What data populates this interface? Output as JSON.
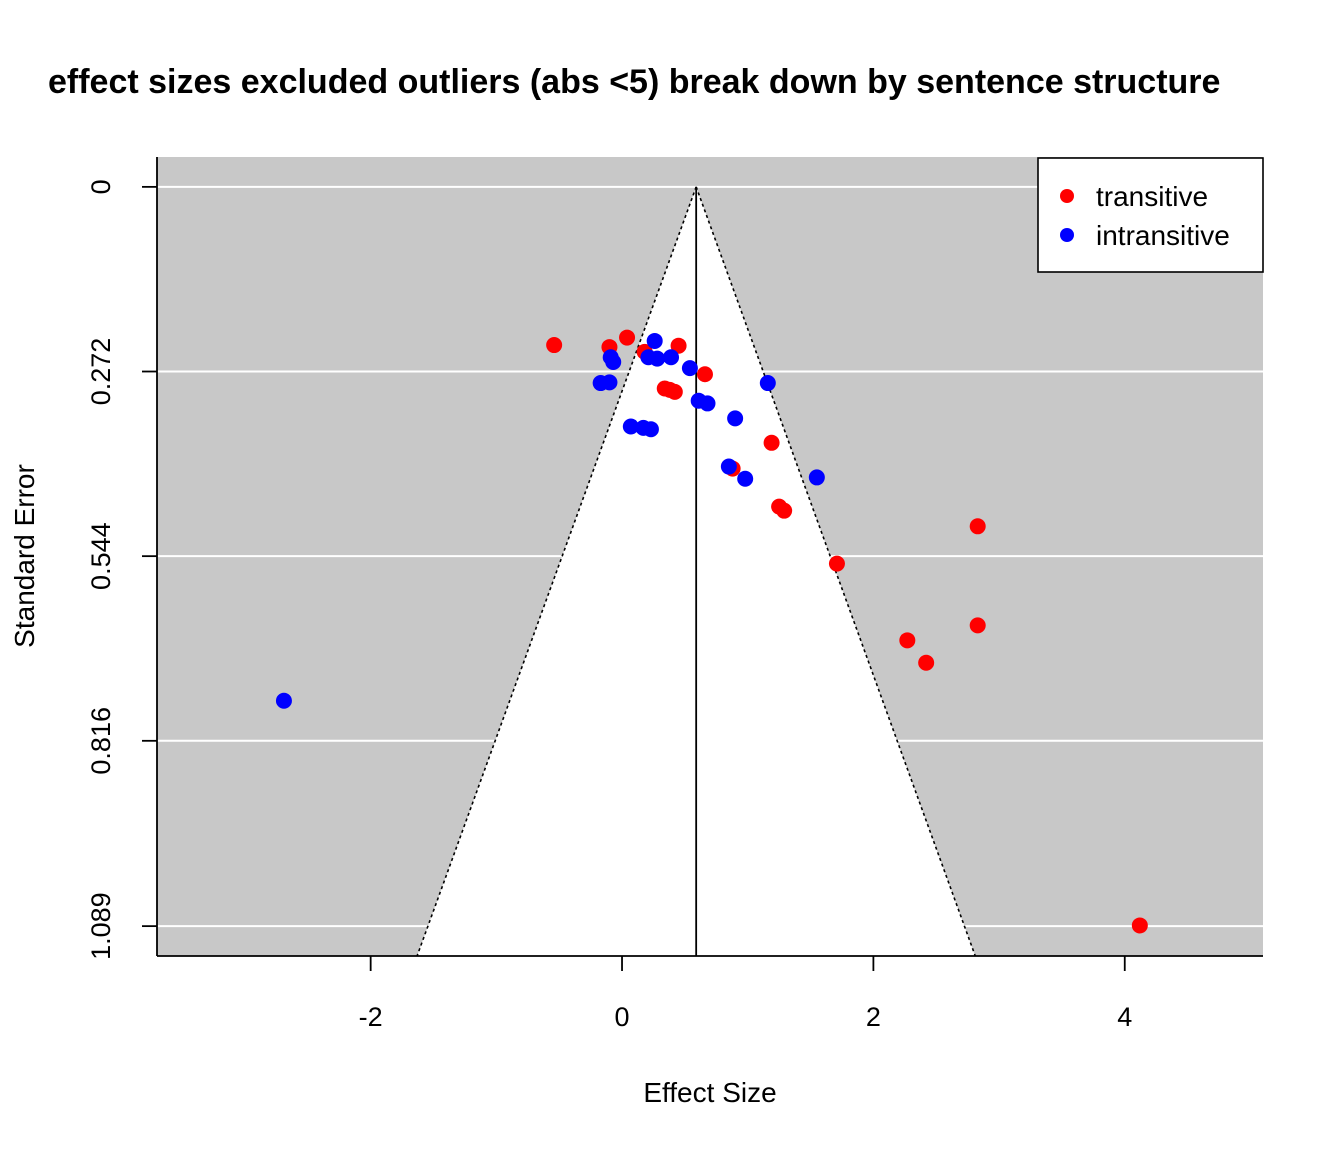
{
  "chart_data": {
    "type": "scatter",
    "title": "effect sizes excluded outliers (abs <5) break down by sentence structure",
    "xlabel": "Effect Size",
    "ylabel": "Standard Error",
    "xlim": [
      -3.7,
      5.1
    ],
    "ylim": [
      1.133,
      -0.044
    ],
    "x_ticks": [
      -2,
      0,
      2,
      4
    ],
    "x_tick_labels": [
      "-2",
      "0",
      "2",
      "4"
    ],
    "y_ticks": [
      0,
      0.272,
      0.544,
      0.816,
      1.089
    ],
    "y_tick_labels": [
      "0",
      "0.272",
      "0.544",
      "0.816",
      "1.089"
    ],
    "y_reversed": true,
    "funnel_center": 0.59,
    "funnel_z": 1.96,
    "background_color": "#c8c8c8",
    "funnel_fill": "#ffffff",
    "grid": true,
    "grid_color": "#ffffff",
    "legend_position": "top-right",
    "series": [
      {
        "name": "transitive",
        "color": "#ff0000",
        "x": [
          -0.54,
          -0.1,
          0.04,
          0.18,
          0.45,
          0.34,
          0.38,
          0.42,
          0.66,
          1.19,
          0.88,
          1.25,
          1.29,
          1.71,
          2.83,
          2.83,
          2.27,
          2.42,
          4.12
        ],
        "y": [
          0.233,
          0.236,
          0.222,
          0.243,
          0.234,
          0.297,
          0.299,
          0.302,
          0.276,
          0.377,
          0.415,
          0.471,
          0.477,
          0.555,
          0.5,
          0.646,
          0.668,
          0.701,
          1.088
        ]
      },
      {
        "name": "intransitive",
        "color": "#0000ff",
        "x": [
          -0.09,
          -0.07,
          -0.17,
          -0.1,
          0.26,
          0.21,
          0.28,
          0.39,
          0.54,
          0.61,
          0.68,
          0.9,
          1.16,
          0.07,
          0.17,
          0.23,
          0.85,
          0.98,
          1.55,
          -2.69
        ],
        "y": [
          0.251,
          0.258,
          0.289,
          0.288,
          0.227,
          0.251,
          0.253,
          0.251,
          0.267,
          0.315,
          0.319,
          0.341,
          0.289,
          0.353,
          0.355,
          0.357,
          0.412,
          0.43,
          0.428,
          0.757
        ]
      }
    ]
  }
}
